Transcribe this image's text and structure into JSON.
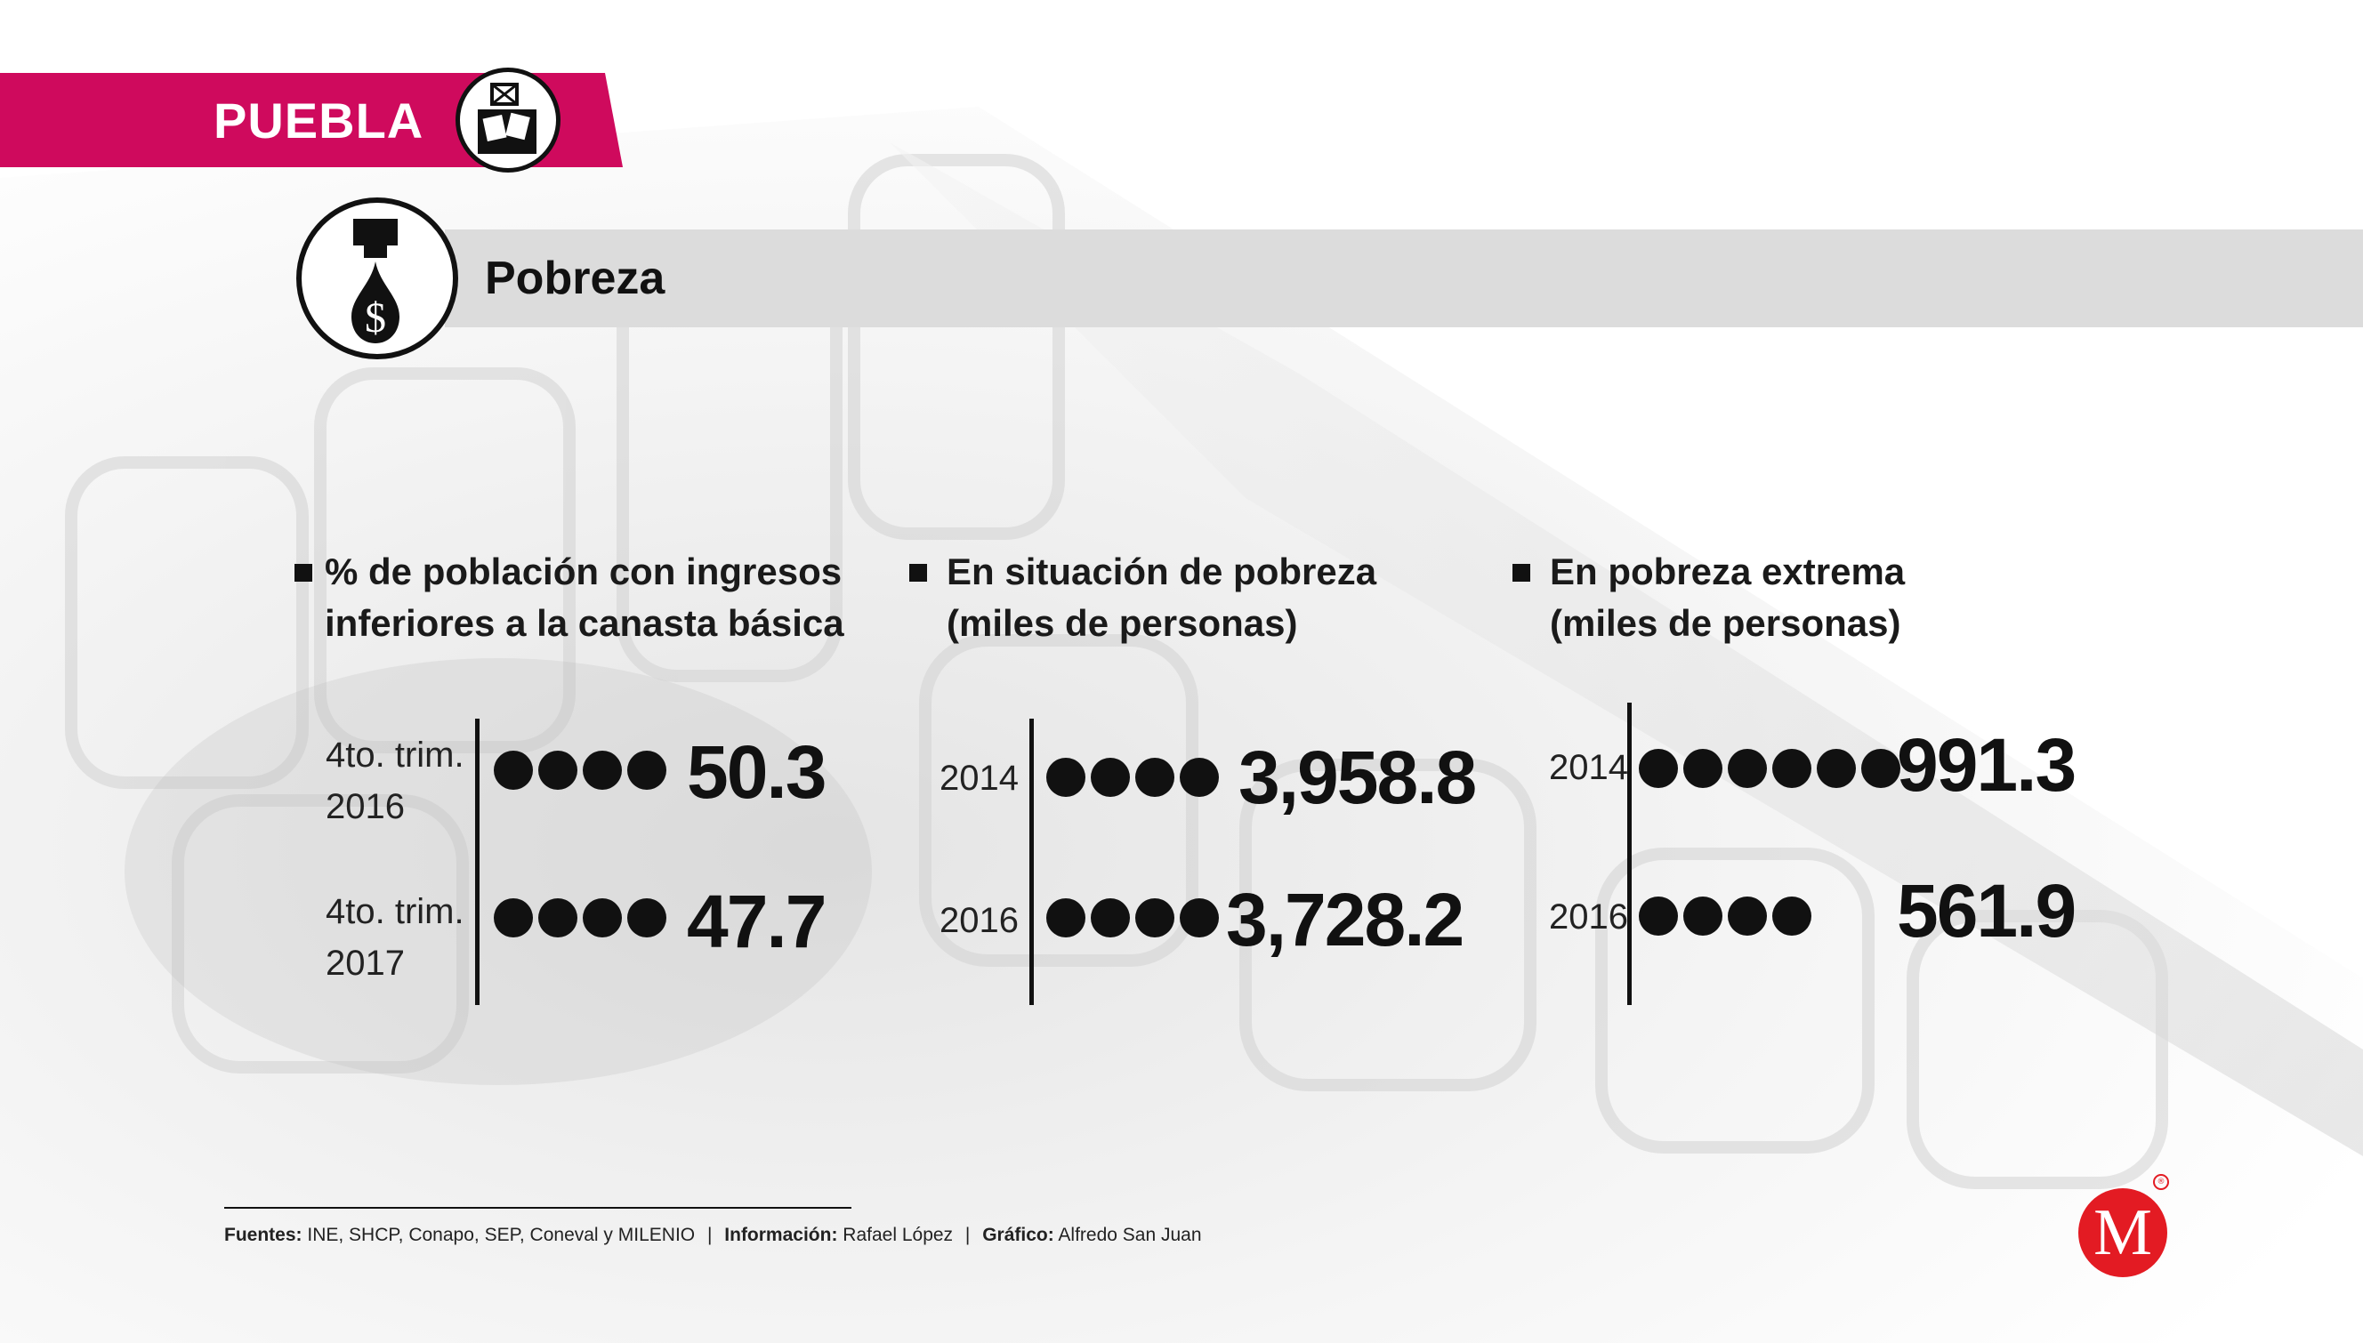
{
  "header": {
    "state": "PUEBLA",
    "state_icon": "ballot-box-icon",
    "ribbon_color": "#cf0a5d"
  },
  "section": {
    "title": "Pobreza",
    "icon": "money-drop-icon"
  },
  "chart_data": [
    {
      "type": "bar",
      "title": "% de población con ingresos inferiores a la canasta básica",
      "title_lines": [
        "% de población con ingresos",
        "inferiores a la canasta básica"
      ],
      "categories": [
        "4to. trim. 2016",
        "4to. trim. 2017"
      ],
      "category_lines": [
        [
          "4to. trim.",
          "2016"
        ],
        [
          "4to. trim.",
          "2017"
        ]
      ],
      "values": [
        50.3,
        47.7
      ],
      "value_labels": [
        "50.3",
        "47.7"
      ],
      "dots": [
        4,
        4
      ]
    },
    {
      "type": "bar",
      "title": "En situación de pobreza (miles de personas)",
      "title_lines": [
        "En situación de pobreza",
        "(miles de personas)"
      ],
      "categories": [
        "2014",
        "2016"
      ],
      "values": [
        3958.8,
        3728.2
      ],
      "value_labels": [
        "3,958.8",
        "3,728.2"
      ],
      "dots": [
        4,
        4
      ]
    },
    {
      "type": "bar",
      "title": "En pobreza extrema (miles de personas)",
      "title_lines": [
        "En pobreza extrema",
        "(miles de personas)"
      ],
      "categories": [
        "2014",
        "2016"
      ],
      "values": [
        991.3,
        561.9
      ],
      "value_labels": [
        "991.3",
        "561.9"
      ],
      "dots": [
        6,
        4
      ]
    }
  ],
  "footer": {
    "sources_label": "Fuentes:",
    "sources": "INE, SHCP, Conapo, SEP, Coneval y MILENIO",
    "info_label": "Información:",
    "info": "Rafael López",
    "graphic_label": "Gráfico:",
    "graphic": "Alfredo San Juan",
    "separator": "|"
  },
  "logo": {
    "letter": "M",
    "registered": "®",
    "color": "#e31b23"
  }
}
